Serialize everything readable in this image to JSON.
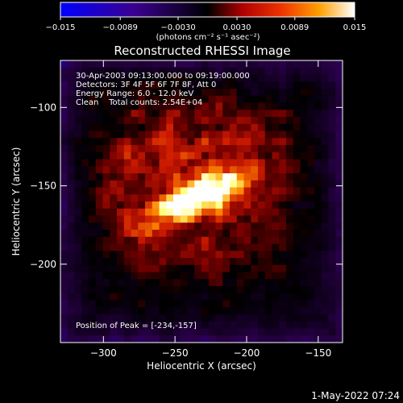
{
  "chart_data": {
    "type": "heatmap",
    "title": "Reconstructed RHESSI Image",
    "xlabel": "Heliocentric X (arcsec)",
    "ylabel": "Heliocentric Y (arcsec)",
    "xlim": [
      -330,
      -133
    ],
    "ylim": [
      -250,
      -70
    ],
    "x_ticks": [
      -300,
      -250,
      -200,
      -150
    ],
    "y_ticks": [
      -100,
      -150,
      -200
    ],
    "x_tick_labels": [
      "−300",
      "−250",
      "−200",
      "−150"
    ],
    "y_tick_labels": [
      "−100",
      "−150",
      "−200"
    ],
    "annotations": {
      "time_range": "30-Apr-2003 09:13:00.000 to 09:19:00.000",
      "detectors": "Detectors: 3F 4F 5F 6F 7F 8F, Att 0",
      "energy_range": "Energy Range: 6.0 - 12.0 keV",
      "method_counts": "Clean    Total counts: 2.54E+04",
      "peak_position": "Position of Peak = [-234,-157]"
    },
    "peak": [
      -234,
      -157
    ],
    "colorbar": {
      "min": -0.015,
      "max": 0.015,
      "tick_values": [
        -0.015,
        -0.0089,
        -0.003,
        0.003,
        0.0089,
        0.015
      ],
      "tick_labels": [
        "−0.015",
        "−0.0089",
        "−0.0030",
        "0.0030",
        "0.0089",
        "0.015"
      ],
      "units": "(photons cm⁻² s⁻¹ asec⁻²)"
    },
    "colors": {
      "negative_end": "#0000ff",
      "mid_low": "#2b004d",
      "zero": "#000000",
      "positive_low": "#cc1a00",
      "positive_mid": "#ff8a00",
      "positive_high": "#ffff80",
      "max": "#ffffff"
    }
  },
  "footer": {
    "timestamp": "1-May-2022 07:24"
  }
}
